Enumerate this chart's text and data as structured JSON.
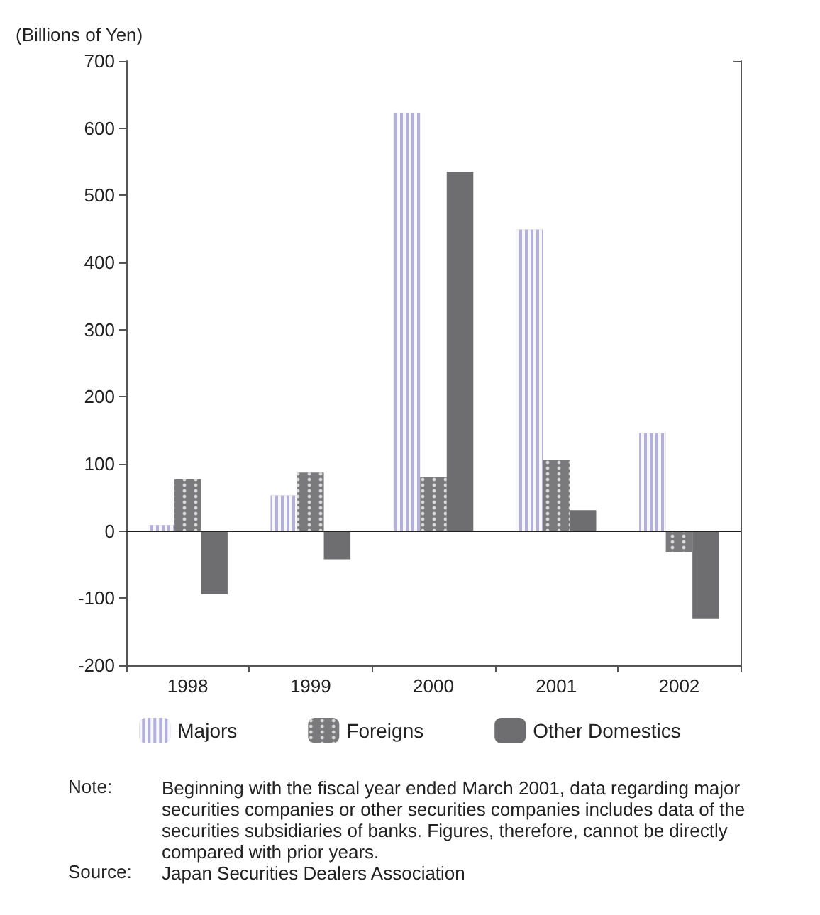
{
  "chart_data": {
    "type": "bar",
    "ylabel": "(Billions of Yen)",
    "categories": [
      "1998",
      "1999",
      "2000",
      "2001",
      "2002"
    ],
    "series": [
      {
        "name": "Majors",
        "color": "#b4b0d8",
        "values": [
          9,
          53,
          622,
          449,
          146
        ]
      },
      {
        "name": "Foreigns",
        "color": "#7a7a7c",
        "values": [
          77,
          87,
          81,
          106,
          -31
        ]
      },
      {
        "name": "Other Domestics",
        "color": "#6e6e70",
        "values": [
          -94,
          -42,
          535,
          31,
          -130
        ]
      }
    ],
    "ylim": [
      -200,
      700
    ],
    "yticks": [
      -200,
      -100,
      0,
      100,
      200,
      300,
      400,
      500,
      600,
      700
    ],
    "ref_lines": [
      {
        "axis": "y",
        "value": 0,
        "color": "#222222"
      }
    ],
    "legend": "bottom",
    "annotations": [
      "Note: Beginning with the fiscal year ended March 2001, data regarding major securities companies or other securities companies includes data of the securities subsidiaries of banks. Figures, therefore, cannot be directly compared with prior years.",
      "Source: Japan Securities Dealers Association"
    ]
  }
}
